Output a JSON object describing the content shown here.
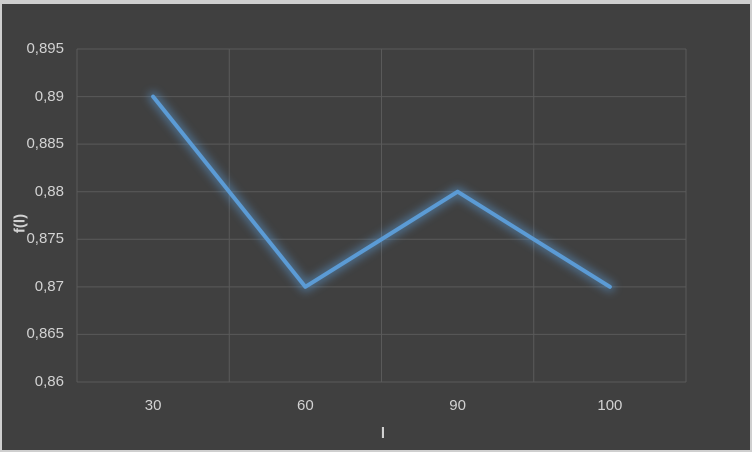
{
  "window": {
    "background_color": "#404040",
    "frame_border_color": "#cfcfcf"
  },
  "chart_data": {
    "type": "line",
    "title": "",
    "xlabel": "l",
    "ylabel": "f(l)",
    "categories": [
      "30",
      "60",
      "90",
      "100"
    ],
    "values": [
      0.89,
      0.87,
      0.88,
      0.87
    ],
    "ylim": [
      0.86,
      0.895
    ],
    "ytick_step": 0.005,
    "ytick_labels": [
      "0,86",
      "0,865",
      "0,87",
      "0,875",
      "0,88",
      "0,885",
      "0,89",
      "0,895"
    ],
    "grid": true,
    "legend_position": "none",
    "line_color": "#5b9bd5",
    "line_glow": true,
    "gridline_color": "#5a5a5a",
    "text_color": "#d2d2d2",
    "plot_background": "#404040",
    "decimal_separator": ","
  }
}
